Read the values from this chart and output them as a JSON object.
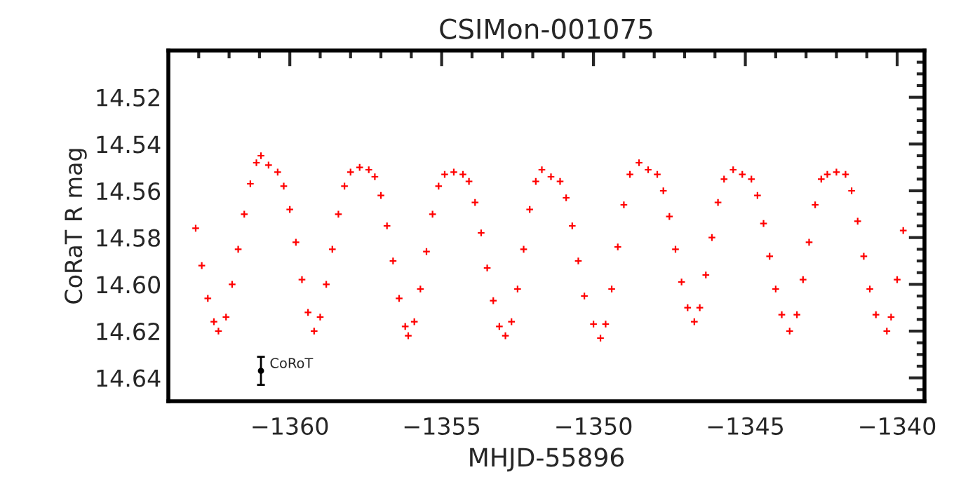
{
  "chart_data": {
    "type": "scatter",
    "title": "CSIMon-001075",
    "xlabel": "MHJD-55896",
    "ylabel": "CoRaT R mag",
    "xlim": [
      -1364,
      -1339.1
    ],
    "ylim": [
      14.65,
      14.5
    ],
    "xticks": [
      {
        "value": -1360,
        "label": "−1360"
      },
      {
        "value": -1355,
        "label": "−1355"
      },
      {
        "value": -1350,
        "label": "−1350"
      },
      {
        "value": -1345,
        "label": "−1345"
      },
      {
        "value": -1340,
        "label": "−1340"
      }
    ],
    "yticks": [
      {
        "value": 14.52,
        "label": "14.52"
      },
      {
        "value": 14.54,
        "label": "14.54"
      },
      {
        "value": 14.56,
        "label": "14.56"
      },
      {
        "value": 14.58,
        "label": "14.58"
      },
      {
        "value": 14.6,
        "label": "14.60"
      },
      {
        "value": 14.62,
        "label": "14.62"
      },
      {
        "value": 14.64,
        "label": "14.64"
      }
    ],
    "grid": false,
    "legend": false,
    "marker": "cross",
    "series": [
      {
        "color": "#ff0000",
        "x": [
          -1363.1,
          -1362.9,
          -1362.7,
          -1362.5,
          -1362.35,
          -1362.1,
          -1361.9,
          -1361.7,
          -1361.5,
          -1361.3,
          -1361.1,
          -1360.95,
          -1360.7,
          -1360.4,
          -1360.2,
          -1360.0,
          -1359.8,
          -1359.6,
          -1359.4,
          -1359.2,
          -1359.0,
          -1358.8,
          -1358.6,
          -1358.4,
          -1358.2,
          -1358.0,
          -1357.7,
          -1357.4,
          -1357.2,
          -1357.0,
          -1356.8,
          -1356.6,
          -1356.4,
          -1356.2,
          -1356.1,
          -1355.9,
          -1355.7,
          -1355.5,
          -1355.3,
          -1355.1,
          -1354.9,
          -1354.6,
          -1354.3,
          -1354.1,
          -1353.9,
          -1353.7,
          -1353.5,
          -1353.3,
          -1353.1,
          -1352.9,
          -1352.7,
          -1352.5,
          -1352.3,
          -1352.1,
          -1351.9,
          -1351.7,
          -1351.4,
          -1351.1,
          -1350.9,
          -1350.7,
          -1350.5,
          -1350.3,
          -1350.0,
          -1349.77,
          -1349.6,
          -1349.4,
          -1349.2,
          -1349.0,
          -1348.8,
          -1348.5,
          -1348.2,
          -1347.9,
          -1347.7,
          -1347.5,
          -1347.3,
          -1347.1,
          -1346.9,
          -1346.68,
          -1346.5,
          -1346.3,
          -1346.1,
          -1345.9,
          -1345.7,
          -1345.4,
          -1345.1,
          -1344.8,
          -1344.6,
          -1344.4,
          -1344.2,
          -1344.0,
          -1343.8,
          -1343.54,
          -1343.3,
          -1343.1,
          -1342.9,
          -1342.7,
          -1342.5,
          -1342.3,
          -1342.0,
          -1341.7,
          -1341.5,
          -1341.3,
          -1341.1,
          -1340.9,
          -1340.7,
          -1340.34,
          -1340.2,
          -1340.0,
          -1339.8
        ],
        "values": [
          14.576,
          14.592,
          14.606,
          14.616,
          14.62,
          14.614,
          14.6,
          14.585,
          14.57,
          14.557,
          14.548,
          14.545,
          14.549,
          14.552,
          14.558,
          14.568,
          14.582,
          14.598,
          14.612,
          14.62,
          14.614,
          14.6,
          14.585,
          14.57,
          14.558,
          14.552,
          14.55,
          14.551,
          14.554,
          14.562,
          14.575,
          14.59,
          14.606,
          14.618,
          14.622,
          14.616,
          14.602,
          14.586,
          14.57,
          14.558,
          14.553,
          14.552,
          14.553,
          14.556,
          14.565,
          14.578,
          14.593,
          14.607,
          14.618,
          14.622,
          14.616,
          14.602,
          14.585,
          14.568,
          14.556,
          14.551,
          14.554,
          14.556,
          14.563,
          14.575,
          14.59,
          14.605,
          14.617,
          14.623,
          14.617,
          14.602,
          14.584,
          14.566,
          14.553,
          14.548,
          14.551,
          14.553,
          14.56,
          14.571,
          14.585,
          14.599,
          14.61,
          14.616,
          14.61,
          14.596,
          14.58,
          14.565,
          14.555,
          14.551,
          14.553,
          14.555,
          14.562,
          14.574,
          14.588,
          14.602,
          14.613,
          14.62,
          14.613,
          14.598,
          14.582,
          14.566,
          14.555,
          14.553,
          14.552,
          14.553,
          14.56,
          14.573,
          14.588,
          14.602,
          14.613,
          14.62,
          14.614,
          14.598,
          14.577
        ]
      },
      {
        "name": "CoRoT",
        "color": "#000000",
        "marker": "circle",
        "x": [
          -1360.95
        ],
        "values": [
          14.637
        ],
        "errors": [
          0.006
        ]
      }
    ]
  }
}
